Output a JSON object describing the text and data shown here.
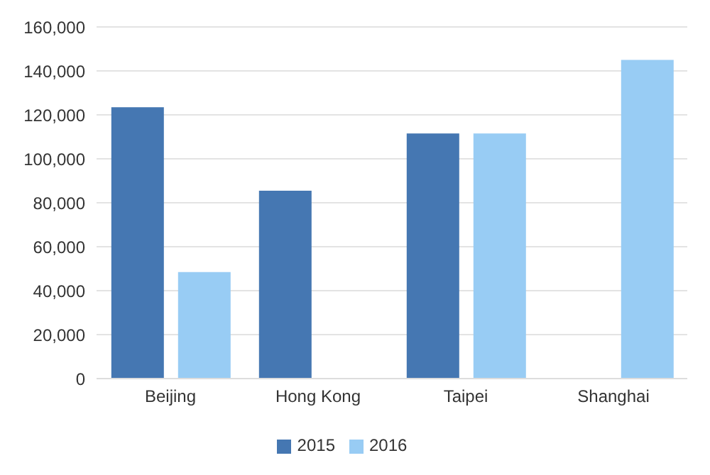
{
  "chart_data": {
    "type": "bar",
    "categories": [
      "Beijing",
      "Hong Kong",
      "Taipei",
      "Shanghai"
    ],
    "series": [
      {
        "name": "2015",
        "color": "#4577b2",
        "values": [
          123500,
          85500,
          111500,
          null
        ]
      },
      {
        "name": "2016",
        "color": "#98ccf4",
        "values": [
          48500,
          null,
          111500,
          145000
        ]
      }
    ],
    "ylim": [
      0,
      160000
    ],
    "yticks": [
      0,
      {
        "value": 20000,
        "label": "20,000"
      },
      {
        "value": 40000,
        "label": "40,000"
      },
      {
        "value": 60000,
        "label": "60,000"
      },
      {
        "value": 80000,
        "label": "80,000"
      },
      {
        "value": 100000,
        "label": "100,000"
      },
      {
        "value": 120000,
        "label": "120,000"
      },
      {
        "value": 140000,
        "label": "140,000"
      },
      {
        "value": 160000,
        "label": "160,000"
      }
    ],
    "grid": "y",
    "legend": "bottom"
  }
}
